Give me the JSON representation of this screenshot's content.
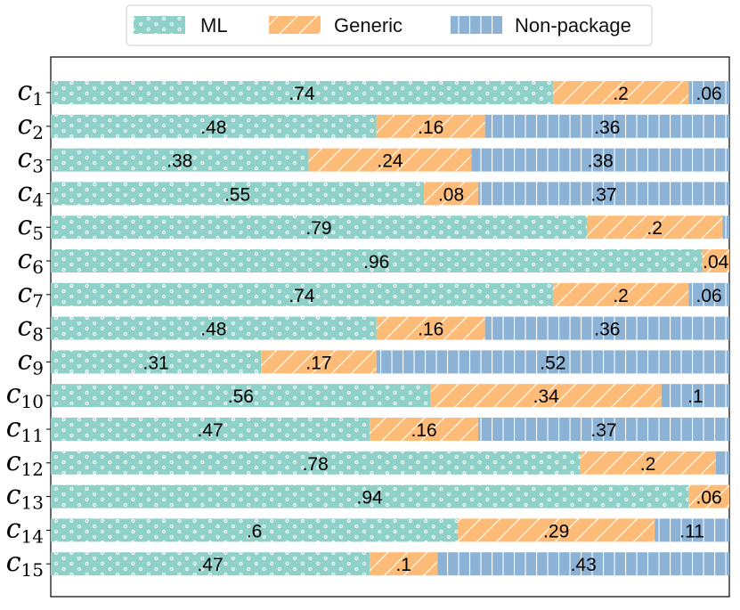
{
  "chart_data": {
    "type": "bar",
    "orientation": "horizontal",
    "stacked": true,
    "title": "",
    "xlabel": "",
    "ylabel": "",
    "xlim": [
      0,
      1
    ],
    "grid": false,
    "legend_position": "top-center",
    "categories": [
      "c1",
      "c2",
      "c3",
      "c4",
      "c5",
      "c6",
      "c7",
      "c8",
      "c9",
      "c10",
      "c11",
      "c12",
      "c13",
      "c14",
      "c15"
    ],
    "category_labels": [
      {
        "base": "c",
        "sub": "1"
      },
      {
        "base": "c",
        "sub": "2"
      },
      {
        "base": "c",
        "sub": "3"
      },
      {
        "base": "c",
        "sub": "4"
      },
      {
        "base": "c",
        "sub": "5"
      },
      {
        "base": "c",
        "sub": "6"
      },
      {
        "base": "c",
        "sub": "7"
      },
      {
        "base": "c",
        "sub": "8"
      },
      {
        "base": "c",
        "sub": "9"
      },
      {
        "base": "c",
        "sub": "10"
      },
      {
        "base": "c",
        "sub": "11"
      },
      {
        "base": "c",
        "sub": "12"
      },
      {
        "base": "c",
        "sub": "13"
      },
      {
        "base": "c",
        "sub": "14"
      },
      {
        "base": "c",
        "sub": "15"
      }
    ],
    "series": [
      {
        "name": "ML",
        "color": "#8fd0c8",
        "pattern": "dots",
        "values": [
          0.74,
          0.48,
          0.38,
          0.55,
          0.79,
          0.96,
          0.74,
          0.48,
          0.31,
          0.56,
          0.47,
          0.78,
          0.94,
          0.6,
          0.47
        ],
        "labels": [
          ".74",
          ".48",
          ".38",
          ".55",
          ".79",
          ".96",
          ".74",
          ".48",
          ".31",
          ".56",
          ".47",
          ".78",
          ".94",
          ".6",
          ".47"
        ]
      },
      {
        "name": "Generic",
        "color": "#fdbb78",
        "pattern": "diagonal",
        "values": [
          0.2,
          0.16,
          0.24,
          0.08,
          0.2,
          0.04,
          0.2,
          0.16,
          0.17,
          0.34,
          0.16,
          0.2,
          0.06,
          0.29,
          0.1
        ],
        "labels": [
          ".2",
          ".16",
          ".24",
          ".08",
          ".2",
          ".04",
          ".2",
          ".16",
          ".17",
          ".34",
          ".16",
          ".2",
          ".06",
          ".29",
          ".1"
        ]
      },
      {
        "name": "Non-package",
        "color": "#8cb3d6",
        "pattern": "vertical",
        "values": [
          0.06,
          0.36,
          0.38,
          0.37,
          0.01,
          0.0,
          0.06,
          0.36,
          0.52,
          0.1,
          0.37,
          0.02,
          0.0,
          0.11,
          0.43
        ],
        "labels": [
          ".06",
          ".36",
          ".38",
          ".37",
          "",
          "",
          ".06",
          ".36",
          ".52",
          ".1",
          ".37",
          "",
          "",
          ".11",
          ".43"
        ]
      }
    ]
  }
}
